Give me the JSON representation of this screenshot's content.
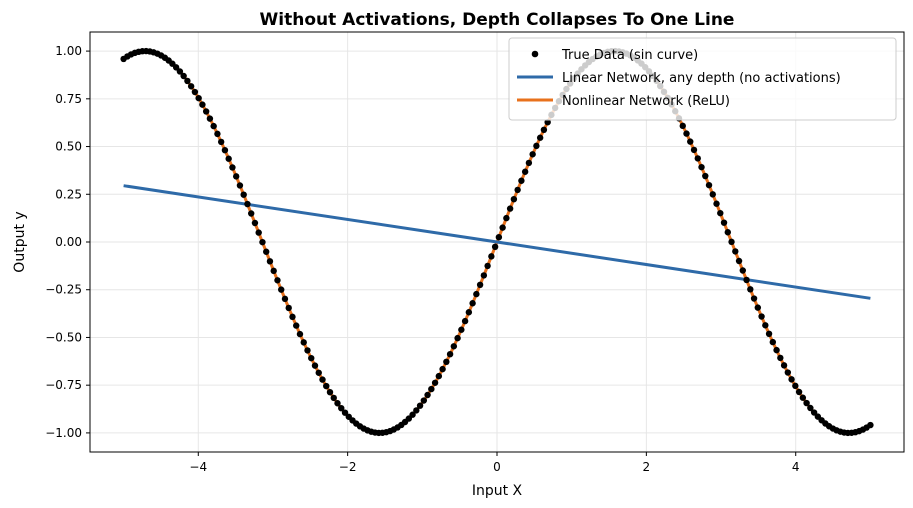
{
  "chart_data": {
    "type": "line",
    "title": "Without Activations, Depth Collapses To One Line",
    "xlabel": "Input X",
    "ylabel": "Output y",
    "xlim": [
      -5.45,
      5.45
    ],
    "ylim": [
      -1.1,
      1.1
    ],
    "xticks": [
      -4,
      -2,
      0,
      2,
      4
    ],
    "xtick_labels": [
      "−4",
      "−2",
      "0",
      "2",
      "4"
    ],
    "yticks": [
      -1.0,
      -0.75,
      -0.5,
      -0.25,
      0.0,
      0.25,
      0.5,
      0.75,
      1.0
    ],
    "ytick_labels": [
      "−1.00",
      "−0.75",
      "−0.50",
      "−0.25",
      "0.00",
      "0.25",
      "0.50",
      "0.75",
      "1.00"
    ],
    "grid": true,
    "legend_position": "top-right",
    "series": [
      {
        "name": "True Data (sin curve)",
        "kind": "scatter",
        "color": "#000000",
        "function": "sin(x)",
        "x_range": [
          -5,
          5
        ],
        "n_points": 200
      },
      {
        "name": "Linear Network, any depth (no activations)",
        "kind": "line",
        "color": "#2e6aa8",
        "x": [
          -5,
          5
        ],
        "y": [
          0.295,
          -0.295
        ]
      },
      {
        "name": "Nonlinear Network (ReLU)",
        "kind": "line",
        "color": "#e8711c",
        "function": "sin(x)",
        "x_range": [
          -5,
          5
        ]
      }
    ]
  }
}
